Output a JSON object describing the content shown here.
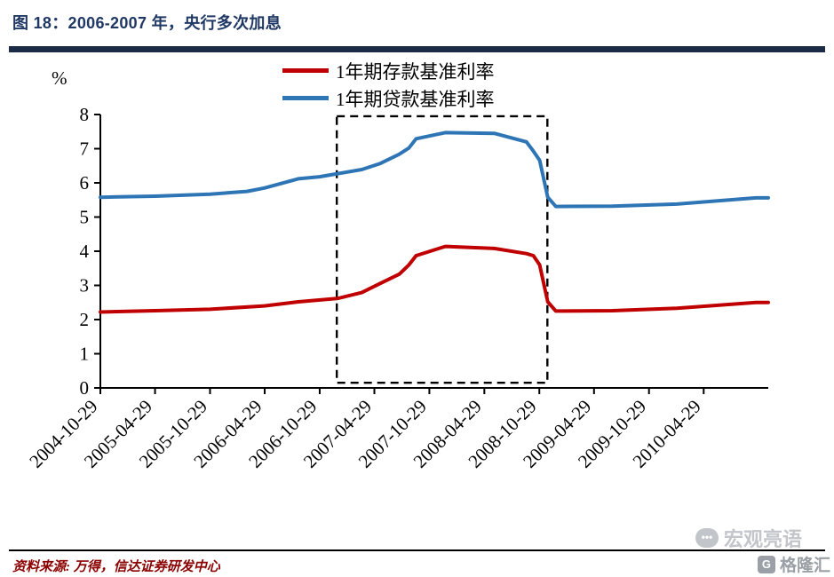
{
  "header": {
    "title": "图 18：2006-2007 年，央行多次加息"
  },
  "chart_data": {
    "type": "line",
    "title": "图 18：2006-2007 年，央行多次加息",
    "xlabel": "",
    "ylabel": "%",
    "ylim": [
      0,
      8
    ],
    "y_ticks": [
      0,
      1,
      2,
      3,
      4,
      5,
      6,
      7,
      8
    ],
    "grid": false,
    "legend_position": "top",
    "x_domain": [
      "2004-10-29",
      "2010-11-30"
    ],
    "x_tick_labels": [
      "2004-10-29",
      "2005-04-29",
      "2005-10-29",
      "2006-04-29",
      "2006-10-29",
      "2007-04-29",
      "2007-10-29",
      "2008-04-29",
      "2008-10-29",
      "2009-04-29",
      "2009-10-29",
      "2010-04-29"
    ],
    "series": [
      {
        "key": "deposit-rate",
        "name": "1年期存款基准利率",
        "color": "#c00000",
        "points": [
          [
            "2004-10-29",
            2.22
          ],
          [
            "2005-04-29",
            2.26
          ],
          [
            "2005-10-29",
            2.3
          ],
          [
            "2006-04-28",
            2.4
          ],
          [
            "2006-08-19",
            2.52
          ],
          [
            "2006-12-29",
            2.62
          ],
          [
            "2007-03-18",
            2.79
          ],
          [
            "2007-05-19",
            3.06
          ],
          [
            "2007-07-21",
            3.33
          ],
          [
            "2007-08-22",
            3.6
          ],
          [
            "2007-09-15",
            3.87
          ],
          [
            "2007-12-21",
            4.14
          ],
          [
            "2008-06-01",
            4.08
          ],
          [
            "2008-09-16",
            3.93
          ],
          [
            "2008-10-09",
            3.87
          ],
          [
            "2008-10-30",
            3.6
          ],
          [
            "2008-11-26",
            2.52
          ],
          [
            "2008-12-23",
            2.25
          ],
          [
            "2009-06-29",
            2.26
          ],
          [
            "2010-01-29",
            2.33
          ],
          [
            "2010-10-20",
            2.5
          ],
          [
            "2010-11-30",
            2.5
          ]
        ]
      },
      {
        "key": "loan-rate",
        "name": "1年期贷款基准利率",
        "color": "#2e75b6",
        "points": [
          [
            "2004-10-29",
            5.58
          ],
          [
            "2005-04-29",
            5.61
          ],
          [
            "2005-10-29",
            5.67
          ],
          [
            "2006-03-01",
            5.75
          ],
          [
            "2006-04-28",
            5.85
          ],
          [
            "2006-08-19",
            6.12
          ],
          [
            "2006-10-29",
            6.18
          ],
          [
            "2007-03-18",
            6.39
          ],
          [
            "2007-05-19",
            6.57
          ],
          [
            "2007-07-21",
            6.84
          ],
          [
            "2007-08-22",
            7.02
          ],
          [
            "2007-09-15",
            7.29
          ],
          [
            "2007-12-21",
            7.47
          ],
          [
            "2008-06-01",
            7.45
          ],
          [
            "2008-09-16",
            7.2
          ],
          [
            "2008-10-09",
            6.93
          ],
          [
            "2008-10-30",
            6.66
          ],
          [
            "2008-11-26",
            5.58
          ],
          [
            "2008-12-23",
            5.31
          ],
          [
            "2009-06-29",
            5.32
          ],
          [
            "2010-01-29",
            5.38
          ],
          [
            "2010-10-20",
            5.56
          ],
          [
            "2010-11-30",
            5.56
          ]
        ]
      }
    ],
    "highlight_box": {
      "style": "dashed",
      "x_start": "2006-12-25",
      "x_end": "2008-11-25",
      "y_min": 0.15,
      "y_max": 7.95
    }
  },
  "footer": {
    "source": "资料来源: 万得，信达证券研发中心"
  },
  "watermarks": {
    "hongguan": "宏观亮语",
    "bubble_dots": "•••",
    "gelonghui": "格隆汇",
    "gelonghui_initial": "G"
  },
  "colors": {
    "title_text": "#1f3864",
    "title_bar": "#1b2a45",
    "source_text": "#8b0000",
    "deposit_line": "#c00000",
    "loan_line": "#2e75b6",
    "axis": "#000000"
  }
}
